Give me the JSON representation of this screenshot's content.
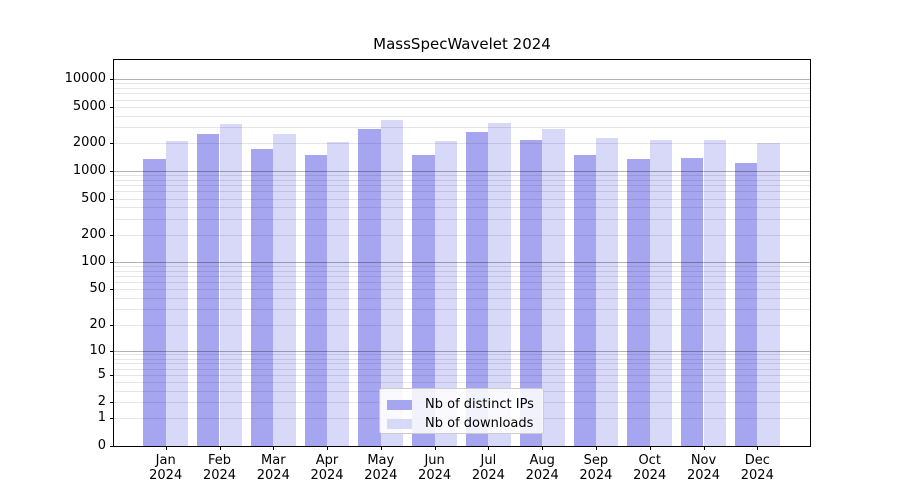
{
  "title": "MassSpecWavelet 2024",
  "chart_data": {
    "type": "bar",
    "title": "MassSpecWavelet 2024",
    "categories": [
      "Jan",
      "Feb",
      "Mar",
      "Apr",
      "May",
      "Jun",
      "Jul",
      "Aug",
      "Sep",
      "Oct",
      "Nov",
      "Dec"
    ],
    "x_year_label": "2024",
    "series": [
      {
        "name": "Nb of distinct IPs",
        "color": "#a6a6f0",
        "values": [
          1340,
          2510,
          1720,
          1500,
          2850,
          1500,
          2680,
          2160,
          1480,
          1360,
          1370,
          1230
        ]
      },
      {
        "name": "Nb of downloads",
        "color": "#d8d8f8",
        "values": [
          2120,
          3280,
          2510,
          2050,
          3600,
          2140,
          3360,
          2870,
          2270,
          2170,
          2190,
          2030
        ]
      }
    ],
    "yscale": "log1p",
    "yticks": [
      0,
      1,
      2,
      5,
      10,
      20,
      50,
      100,
      200,
      500,
      1000,
      2000,
      5000,
      10000
    ],
    "ylim": [
      0,
      16000
    ],
    "xlabel": "",
    "ylabel": "",
    "grid": {
      "orientation": "horizontal",
      "minor_color": "rgba(0,0,0,0.10)",
      "major_color": "rgba(0,0,0,0.30)",
      "major_at": [
        10,
        100,
        1000,
        10000
      ]
    },
    "legend_position": "lower center"
  },
  "colors": {
    "background": "#ffffff",
    "spine": "#000000",
    "text": "#000000"
  }
}
